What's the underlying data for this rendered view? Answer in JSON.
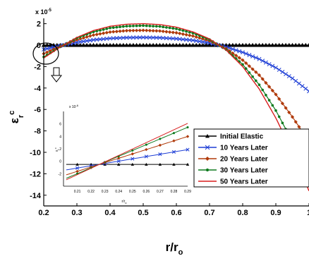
{
  "chart_data": {
    "type": "line",
    "xlabel": "r/r",
    "xlabel_sub": "o",
    "ylabel": "ε",
    "ylabel_sup": "c",
    "ylabel_sub": "r",
    "y_multiplier": "x 10",
    "y_multiplier_exp": "-5",
    "xlim": [
      0.2,
      1.0
    ],
    "ylim": [
      -15,
      2.5
    ],
    "xticks": [
      0.2,
      0.3,
      0.4,
      0.5,
      0.6,
      0.7,
      0.8,
      0.9,
      1.0
    ],
    "xtick_labels": [
      "0.2",
      "0.3",
      "0.4",
      "0.5",
      "0.6",
      "0.7",
      "0.8",
      "0.9",
      "1"
    ],
    "yticks": [
      2,
      0,
      -2,
      -4,
      -6,
      -8,
      -10,
      -12,
      -14
    ],
    "ytick_labels": [
      "2",
      "0",
      "-2",
      "-4",
      "-6",
      "-8",
      "-10",
      "-12",
      "-14"
    ],
    "legend_position": "center-right",
    "series": [
      {
        "name": "Initial Elastic",
        "color": "#000000",
        "marker": "triangle",
        "line_width": 1.5,
        "x": [
          0.2,
          0.3,
          0.4,
          0.5,
          0.6,
          0.7,
          0.8,
          0.9,
          1.0
        ],
        "y": [
          0,
          0,
          0,
          0,
          0,
          0,
          0,
          0,
          0
        ]
      },
      {
        "name": "10 Years Later",
        "color": "#1f3fd6",
        "marker": "x",
        "line_width": 1.2,
        "x": [
          0.2,
          0.25,
          0.3,
          0.35,
          0.4,
          0.45,
          0.5,
          0.55,
          0.6,
          0.65,
          0.7,
          0.75,
          0.8,
          0.85,
          0.9,
          0.95,
          1.0
        ],
        "y": [
          -0.4,
          -0.05,
          0.26,
          0.49,
          0.63,
          0.7,
          0.72,
          0.69,
          0.6,
          0.45,
          0.2,
          -0.17,
          -0.67,
          -1.3,
          -2.1,
          -3.1,
          -4.3
        ]
      },
      {
        "name": "20 Years Later",
        "color": "#b03a0a",
        "marker": "diamond",
        "line_width": 1.2,
        "x": [
          0.2,
          0.25,
          0.3,
          0.35,
          0.4,
          0.45,
          0.5,
          0.55,
          0.6,
          0.65,
          0.7,
          0.75,
          0.8,
          0.85,
          0.9,
          0.95,
          1.0
        ],
        "y": [
          -0.8,
          -0.12,
          0.5,
          0.94,
          1.22,
          1.35,
          1.38,
          1.32,
          1.15,
          0.85,
          0.4,
          -0.33,
          -1.4,
          -2.8,
          -4.6,
          -6.7,
          -9.0
        ]
      },
      {
        "name": "30 Years Later",
        "color": "#0e7a1e",
        "marker": "dot",
        "line_width": 1.2,
        "x": [
          0.2,
          0.25,
          0.3,
          0.35,
          0.4,
          0.45,
          0.5,
          0.55,
          0.6,
          0.65,
          0.7,
          0.75,
          0.8,
          0.85,
          0.9,
          0.95,
          1.0
        ],
        "y": [
          -1.1,
          -0.16,
          0.66,
          1.24,
          1.6,
          1.77,
          1.82,
          1.74,
          1.52,
          1.12,
          0.52,
          -0.42,
          -1.8,
          -3.7,
          -6.1,
          -9.0,
          -12.3
        ]
      },
      {
        "name": "50 Years Later",
        "color": "#d81d1d",
        "marker": "none",
        "line_width": 1.4,
        "x": [
          0.2,
          0.25,
          0.3,
          0.35,
          0.4,
          0.45,
          0.5,
          0.55,
          0.6,
          0.65,
          0.7,
          0.75,
          0.8,
          0.85,
          0.9,
          0.95,
          1.0
        ],
        "y": [
          -1.2,
          -0.18,
          0.72,
          1.36,
          1.76,
          1.95,
          2.0,
          1.92,
          1.68,
          1.24,
          0.58,
          -0.46,
          -2.0,
          -4.1,
          -6.8,
          -10.0,
          -13.6
        ]
      }
    ],
    "inset": {
      "xlabel": "r/r",
      "xlabel_sub": "o",
      "y_multiplier": "x 10",
      "y_multiplier_exp": "-6",
      "ylabel": "ε",
      "ylabel_sub": "r",
      "ylabel_sup": "c",
      "xlim": [
        0.2,
        0.29
      ],
      "ylim": [
        -4,
        8
      ],
      "xticks": [
        0.21,
        0.22,
        0.23,
        0.24,
        0.25,
        0.26,
        0.27,
        0.28,
        0.29
      ],
      "xtick_labels": [
        "0.21",
        "0.22",
        "0.23",
        "0.24",
        "0.25",
        "0.26",
        "0.27",
        "0.28",
        "0.29"
      ],
      "yticks": [
        6,
        4,
        2,
        0,
        -2
      ],
      "ytick_labels": [
        "6",
        "4",
        "2",
        "0",
        "-2"
      ]
    }
  }
}
